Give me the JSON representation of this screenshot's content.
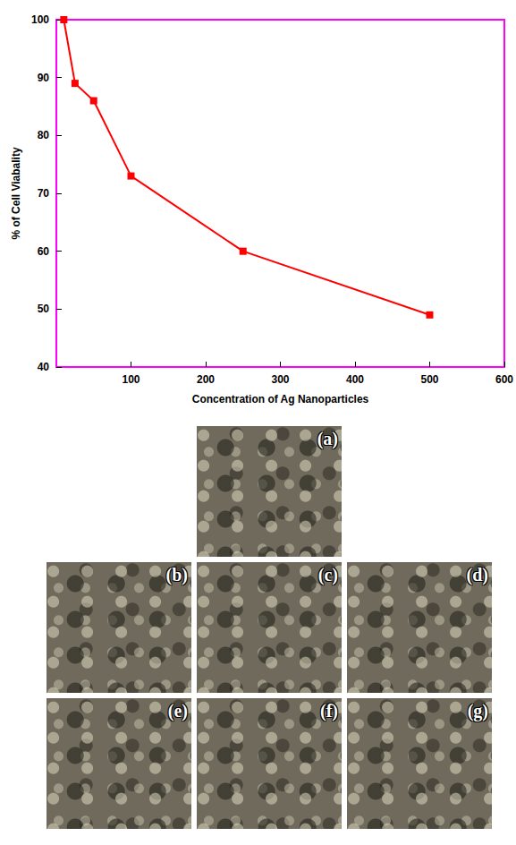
{
  "chart_data": {
    "type": "line",
    "xlabel": "Concentration of Ag Nanoparticles",
    "ylabel": "% of Cell Viabality",
    "x": [
      10,
      25,
      50,
      100,
      250,
      500
    ],
    "values": [
      100,
      89,
      86,
      73,
      60,
      49
    ],
    "color": "#ff0000",
    "marker": "square",
    "xlim": [
      0,
      600
    ],
    "xticks": [
      100,
      200,
      300,
      400,
      500,
      600
    ],
    "ylim": [
      40,
      100
    ],
    "yticks": [
      40,
      50,
      60,
      70,
      80,
      90,
      100
    ],
    "grid": false
  },
  "panels": [
    "(a)",
    "(b)",
    "(c)",
    "(d)",
    "(e)",
    "(f)",
    "(g)"
  ]
}
